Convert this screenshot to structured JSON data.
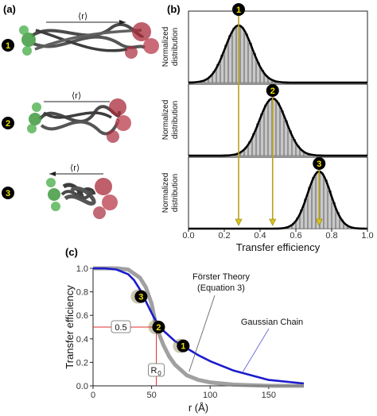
{
  "panels": {
    "a": {
      "label": "(a)",
      "distance_symbol": "⟨r⟩",
      "states": [
        "1",
        "2",
        "3"
      ]
    },
    "b": {
      "label": "(b)"
    },
    "c": {
      "label": "(c)"
    }
  },
  "chart_data": [
    {
      "type": "bar",
      "panel": "b",
      "xlabel": "Transfer efficiency",
      "ylabel": "Normalized distribution",
      "xlim": [
        0,
        1
      ],
      "xticks": [
        "0.0",
        "0.2",
        "0.4",
        "0.6",
        "0.8",
        "1.0"
      ],
      "series": [
        {
          "marker": "1",
          "mean": 0.28,
          "sd": 0.075
        },
        {
          "marker": "2",
          "mean": 0.47,
          "sd": 0.075
        },
        {
          "marker": "3",
          "mean": 0.73,
          "sd": 0.065
        }
      ]
    },
    {
      "type": "line",
      "panel": "c",
      "xlabel": "r (Å)",
      "ylabel": "Transfer efficiency",
      "xlim": [
        0,
        180
      ],
      "ylim": [
        0,
        1.0
      ],
      "xticks": [
        "0",
        "50",
        "100",
        "150"
      ],
      "yticks": [
        "0.0",
        "0.2",
        "0.4",
        "0.6",
        "0.8",
        "1.0"
      ],
      "R0": 54,
      "series": [
        {
          "name": "Förster Theory (Equation 3)",
          "color": "#808080",
          "x": [
            0,
            10,
            20,
            30,
            40,
            45,
            50,
            54,
            60,
            65,
            70,
            80,
            90,
            100,
            120,
            150,
            180
          ],
          "y": [
            1.0,
            1.0,
            1.0,
            0.99,
            0.92,
            0.84,
            0.7,
            0.5,
            0.35,
            0.25,
            0.18,
            0.09,
            0.05,
            0.03,
            0.01,
            0.0,
            0.0
          ]
        },
        {
          "name": "Gaussian Chain",
          "color": "#1b1bcc",
          "x": [
            0,
            10,
            20,
            30,
            35,
            40,
            45,
            50,
            55,
            60,
            70,
            80,
            90,
            100,
            120,
            150,
            180
          ],
          "y": [
            1.0,
            1.0,
            0.99,
            0.95,
            0.9,
            0.82,
            0.72,
            0.62,
            0.53,
            0.47,
            0.38,
            0.32,
            0.26,
            0.21,
            0.13,
            0.05,
            0.02
          ]
        }
      ],
      "points": [
        {
          "label": "1",
          "r": 77,
          "E": 0.34
        },
        {
          "label": "2",
          "r": 56,
          "E": 0.5
        },
        {
          "label": "3",
          "r": 41,
          "E": 0.76
        }
      ],
      "annotations": {
        "forster_line1": "Förster Theory",
        "forster_line2": "(Equation 3)",
        "gaussian": "Gaussian Chain",
        "half": "0.5",
        "R0_base": "R",
        "R0_sub": "0"
      }
    }
  ]
}
